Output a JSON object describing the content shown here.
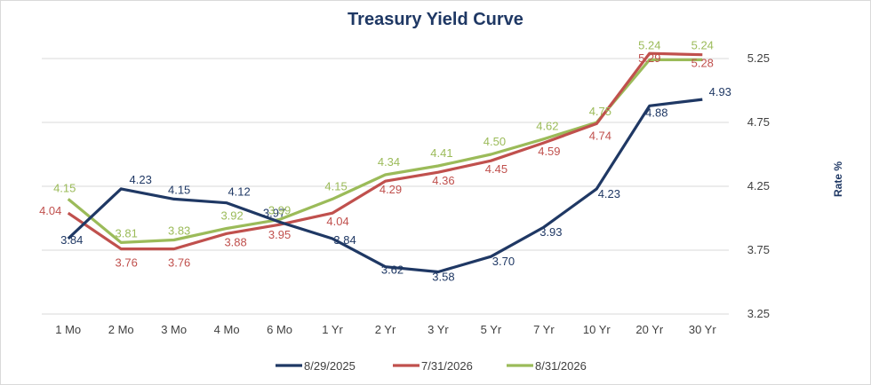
{
  "chart_data": {
    "type": "line",
    "title": "Treasury Yield Curve",
    "xlabel": "",
    "ylabel": "Rate %",
    "categories": [
      "1 Mo",
      "2 Mo",
      "3 Mo",
      "4 Mo",
      "6 Mo",
      "1 Yr",
      "2 Yr",
      "3 Yr",
      "5 Yr",
      "7 Yr",
      "10 Yr",
      "20 Yr",
      "30 Yr"
    ],
    "ylim": [
      3.25,
      5.25
    ],
    "yticks": [
      "3.25",
      "3.75",
      "4.25",
      "4.75",
      "5.25"
    ],
    "y_axis_side": "right",
    "grid": true,
    "legend_position": "bottom",
    "series": [
      {
        "name": "8/29/2025",
        "color": "#1f3864",
        "values": [
          3.84,
          4.23,
          4.15,
          4.12,
          3.97,
          3.84,
          3.62,
          3.58,
          3.7,
          3.93,
          4.23,
          4.88,
          4.93
        ],
        "labels": [
          "3.84",
          "4.23",
          "4.15",
          "4.12",
          "3.97",
          "3.84",
          "3.62",
          "3.58",
          "3.70",
          "3.93",
          "4.23",
          "4.88",
          "4.93"
        ]
      },
      {
        "name": "7/31/2026",
        "color": "#c0504d",
        "values": [
          4.04,
          3.76,
          3.76,
          3.88,
          3.95,
          4.04,
          4.29,
          4.36,
          4.45,
          4.59,
          4.74,
          5.29,
          5.28
        ],
        "labels": [
          "4.04",
          "3.76",
          "3.76",
          "3.88",
          "3.95",
          "4.04",
          "4.29",
          "4.36",
          "4.45",
          "4.59",
          "4.74",
          "5.29",
          "5.28"
        ]
      },
      {
        "name": "8/31/2026",
        "color": "#9bbb59",
        "values": [
          4.15,
          3.81,
          3.83,
          3.92,
          3.99,
          4.15,
          4.34,
          4.41,
          4.5,
          4.62,
          4.75,
          5.24,
          5.24
        ],
        "labels": [
          "4.15",
          "3.81",
          "3.83",
          "3.92",
          "3.99",
          "4.15",
          "4.34",
          "4.41",
          "4.50",
          "4.62",
          "4.75",
          "5.24",
          "5.24"
        ]
      }
    ]
  }
}
